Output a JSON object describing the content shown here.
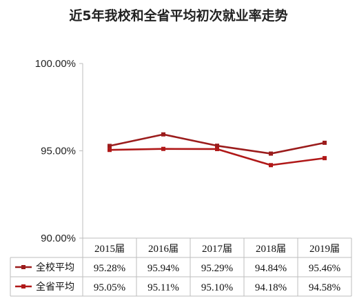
{
  "chart_data": {
    "type": "line",
    "title": "近5年我校和全省平均初次就业率走势",
    "categories": [
      "2015届",
      "2016届",
      "2017届",
      "2018届",
      "2019届"
    ],
    "series": [
      {
        "name": "全校平均",
        "values": [
          95.28,
          95.94,
          95.29,
          94.84,
          95.46
        ],
        "labels": [
          "95.28%",
          "95.94%",
          "95.29%",
          "94.84%",
          "95.46%"
        ],
        "color": "#9b1c1c"
      },
      {
        "name": "全省平均",
        "values": [
          95.05,
          95.11,
          95.1,
          94.18,
          94.58
        ],
        "labels": [
          "95.05%",
          "95.11%",
          "95.10%",
          "94.18%",
          "94.58%"
        ],
        "color": "#b01818"
      }
    ],
    "ylim": [
      90,
      100
    ],
    "yticks": [
      "90.00%",
      "95.00%",
      "100.00%"
    ],
    "ytick_values": [
      90,
      95,
      100
    ],
    "data_table": true,
    "grid": false
  }
}
